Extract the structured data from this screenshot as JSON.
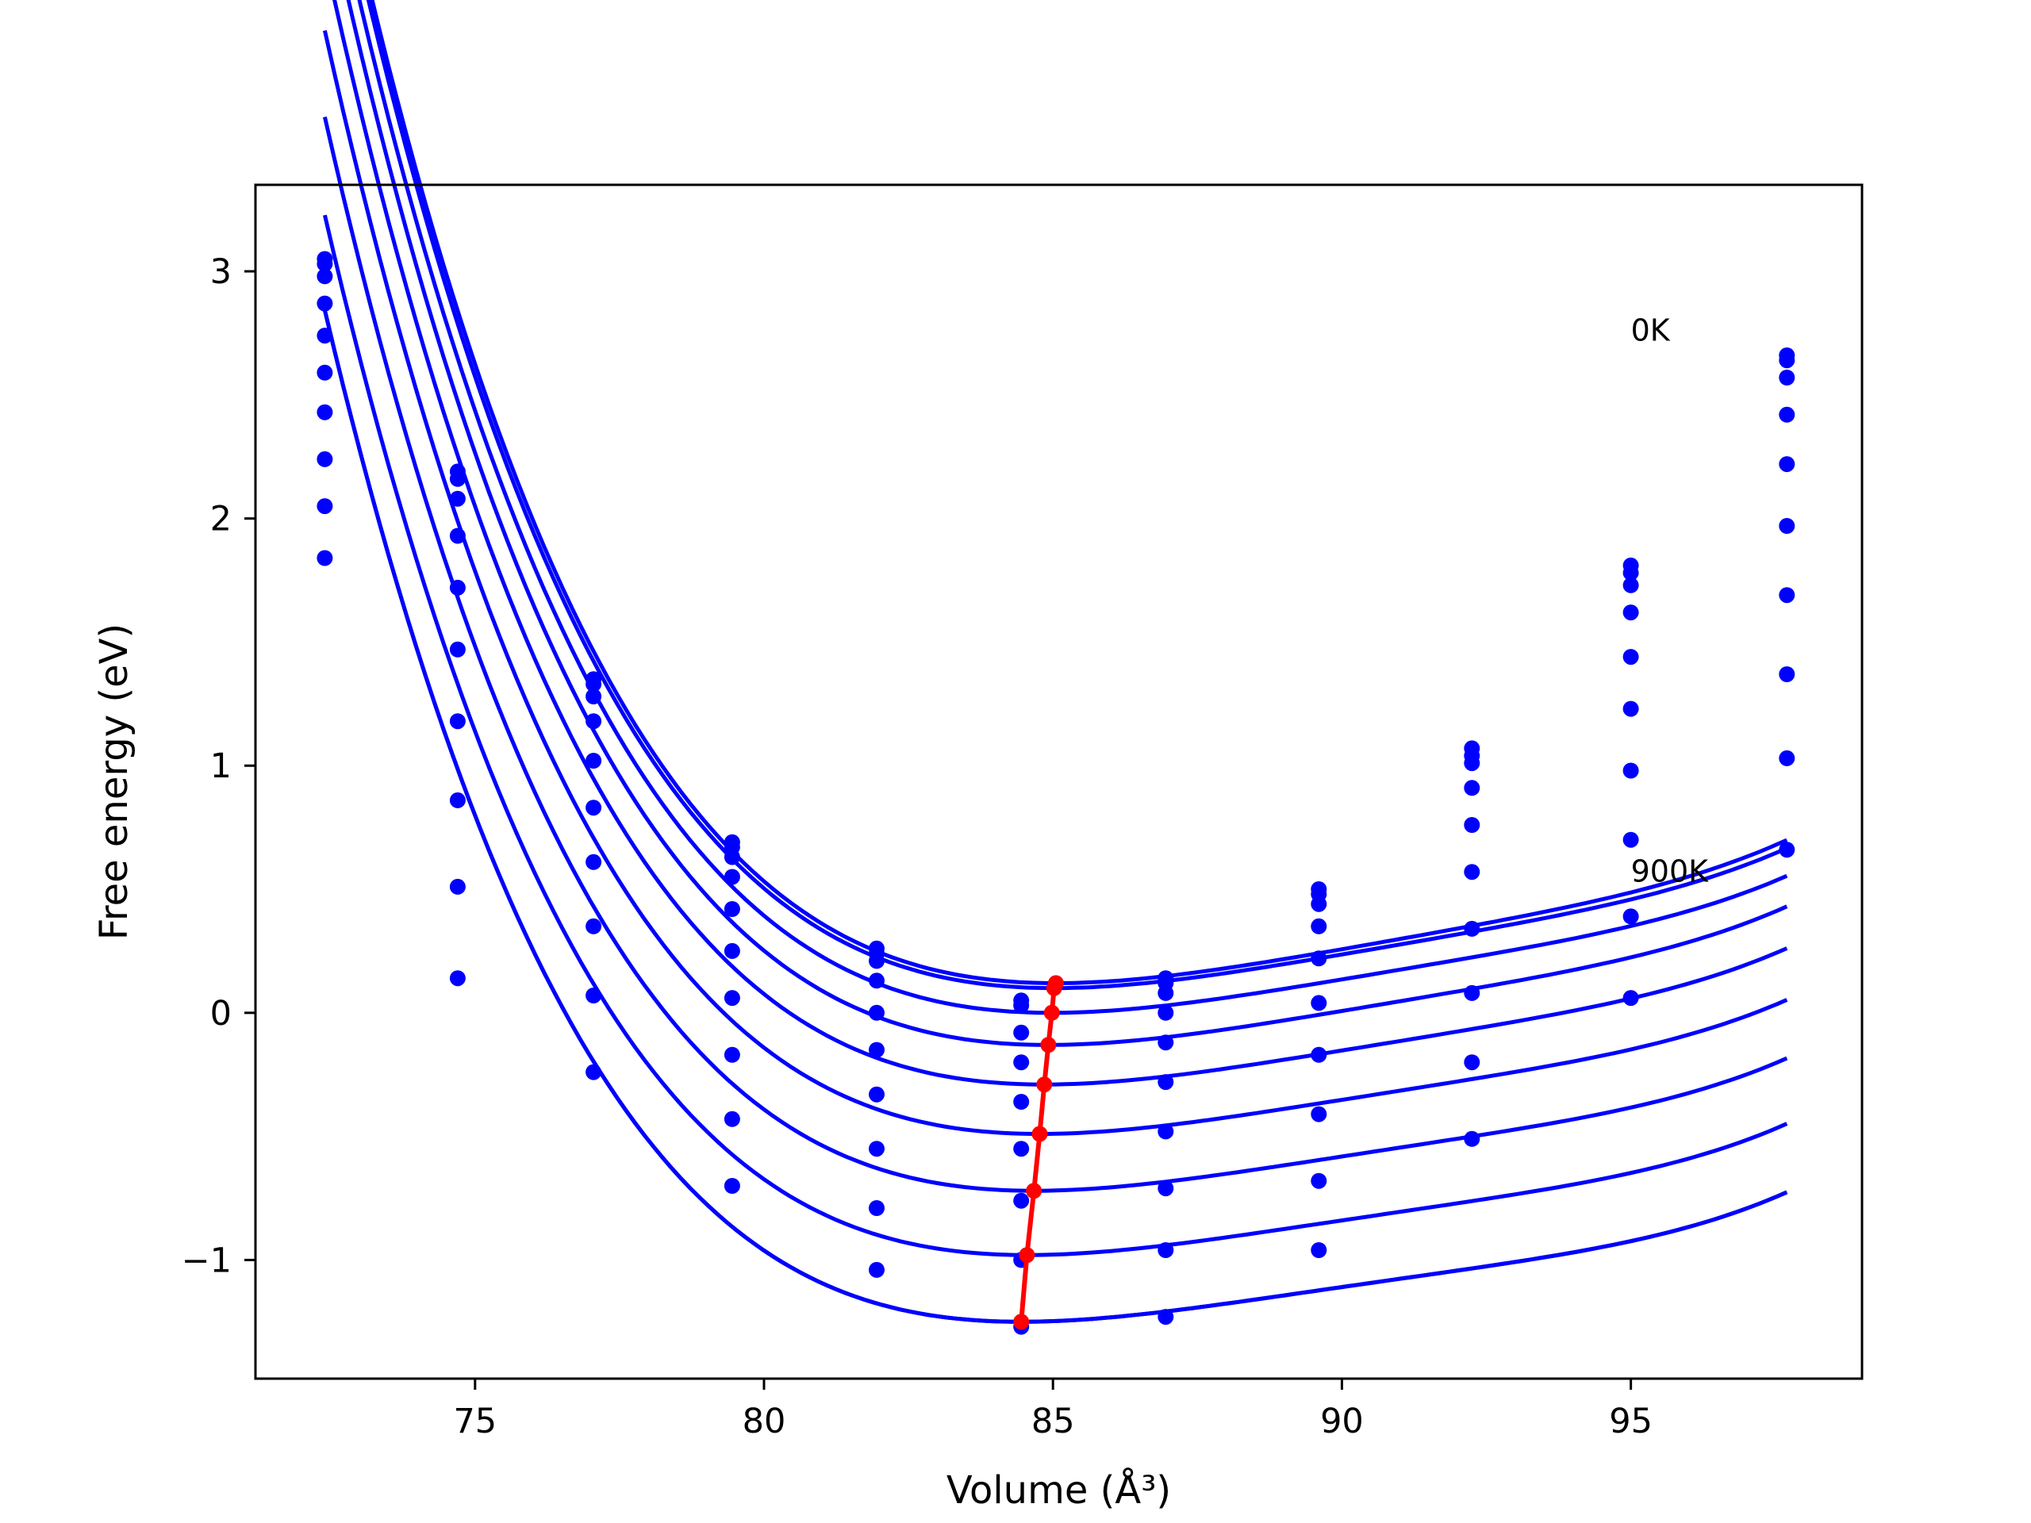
{
  "chart_data": {
    "type": "scatter",
    "title": "",
    "xlabel": "Volume (Å³)",
    "ylabel": "Free energy (eV)",
    "xlim": [
      71.2,
      99.0
    ],
    "ylim": [
      -1.48,
      3.35
    ],
    "grid": false,
    "xticks": [
      75,
      80,
      85,
      90,
      95
    ],
    "xtick_labels": [
      "75",
      "80",
      "85",
      "90",
      "95"
    ],
    "yticks": [
      -1,
      0,
      1,
      2,
      3
    ],
    "ytick_labels": [
      "−1",
      "0",
      "1",
      "2",
      "3"
    ],
    "colors": {
      "curves": "#0000ff",
      "minima": "#ff0000",
      "axes": "#000000"
    },
    "annotations": [
      {
        "text": "0K",
        "x": 95.0,
        "y": 2.72
      },
      {
        "text": "900K",
        "x": 95.0,
        "y": 0.53
      }
    ],
    "fit_range": [
      72.4,
      97.7
    ],
    "x": [
      72.4,
      74.7,
      77.05,
      79.45,
      81.95,
      84.45,
      86.95,
      89.6,
      92.25,
      95.0,
      97.7
    ],
    "series": [
      {
        "fit": {
          "v0": 85.05,
          "e0": 0.12,
          "a0": 0.0097,
          "a1": 0.00105,
          "a2": 4.5e-05
        },
        "points": [
          3.05,
          2.19,
          1.35,
          0.69,
          0.26,
          0.05,
          0.14,
          0.5,
          1.07,
          1.81,
          2.66
        ]
      },
      {
        "fit": {
          "v0": 85.02,
          "e0": 0.1,
          "a0": 0.0096,
          "a1": 0.00105,
          "a2": 4.5e-05
        },
        "points": [
          3.03,
          2.16,
          1.33,
          0.67,
          0.24,
          0.03,
          0.12,
          0.48,
          1.04,
          1.78,
          2.64
        ]
      },
      {
        "fit": {
          "v0": 84.98,
          "e0": 0.0,
          "a0": 0.0095,
          "a1": 0.00105,
          "a2": 4.5e-05
        },
        "points": [
          2.98,
          2.08,
          1.28,
          0.63,
          0.21,
          -0.08,
          0.08,
          0.44,
          1.01,
          1.73,
          2.57
        ]
      },
      {
        "fit": {
          "v0": 84.92,
          "e0": -0.13,
          "a0": 0.0095,
          "a1": 0.00105,
          "a2": 4.5e-05
        },
        "points": [
          2.87,
          1.93,
          1.18,
          0.55,
          0.13,
          -0.2,
          0.0,
          0.35,
          0.91,
          1.62,
          2.42
        ]
      },
      {
        "fit": {
          "v0": 84.85,
          "e0": -0.29,
          "a0": 0.0094,
          "a1": 0.00105,
          "a2": 4.5e-05
        },
        "points": [
          2.74,
          1.72,
          1.02,
          0.42,
          0.0,
          -0.36,
          -0.12,
          0.22,
          0.76,
          1.44,
          2.22
        ]
      },
      {
        "fit": {
          "v0": 84.77,
          "e0": -0.49,
          "a0": 0.0093,
          "a1": 0.00105,
          "a2": 4.5e-05
        },
        "points": [
          2.59,
          1.47,
          0.83,
          0.25,
          -0.15,
          -0.55,
          -0.28,
          0.04,
          0.57,
          1.23,
          1.97
        ]
      },
      {
        "fit": {
          "v0": 84.67,
          "e0": -0.72,
          "a0": 0.0092,
          "a1": 0.00105,
          "a2": 4.5e-05
        },
        "points": [
          2.43,
          1.18,
          0.61,
          0.06,
          -0.33,
          -0.76,
          -0.48,
          -0.17,
          0.34,
          0.98,
          1.69
        ]
      },
      {
        "fit": {
          "v0": 84.55,
          "e0": -0.98,
          "a0": 0.0091,
          "a1": 0.00105,
          "a2": 4.5e-05
        },
        "points": [
          2.24,
          0.86,
          0.35,
          -0.17,
          -0.55,
          -1.0,
          -0.71,
          -0.41,
          0.08,
          0.7,
          1.37
        ]
      },
      {
        "fit": {
          "v0": 84.45,
          "e0": -1.25,
          "a0": 0.009,
          "a1": 0.00105,
          "a2": 4.5e-05
        },
        "points": [
          2.05,
          0.51,
          0.07,
          -0.43,
          -0.79,
          -1.27,
          -0.96,
          -0.68,
          -0.2,
          0.39,
          1.03
        ]
      },
      {
        "fit": {
          "v0": 84.45,
          "e0": -1.25,
          "a0": 0.009,
          "a1": 0.00105,
          "a2": 4.5e-05
        },
        "points": [
          1.84,
          0.14,
          -0.24,
          -0.7,
          -1.04,
          null,
          -1.23,
          -0.96,
          -0.51,
          0.06,
          0.66
        ]
      }
    ],
    "minima": {
      "x": [
        85.05,
        85.02,
        84.98,
        84.92,
        84.85,
        84.77,
        84.67,
        84.55,
        84.45
      ],
      "y": [
        0.12,
        0.1,
        0.0,
        -0.13,
        -0.29,
        -0.49,
        -0.72,
        -0.98,
        -1.25
      ]
    }
  }
}
